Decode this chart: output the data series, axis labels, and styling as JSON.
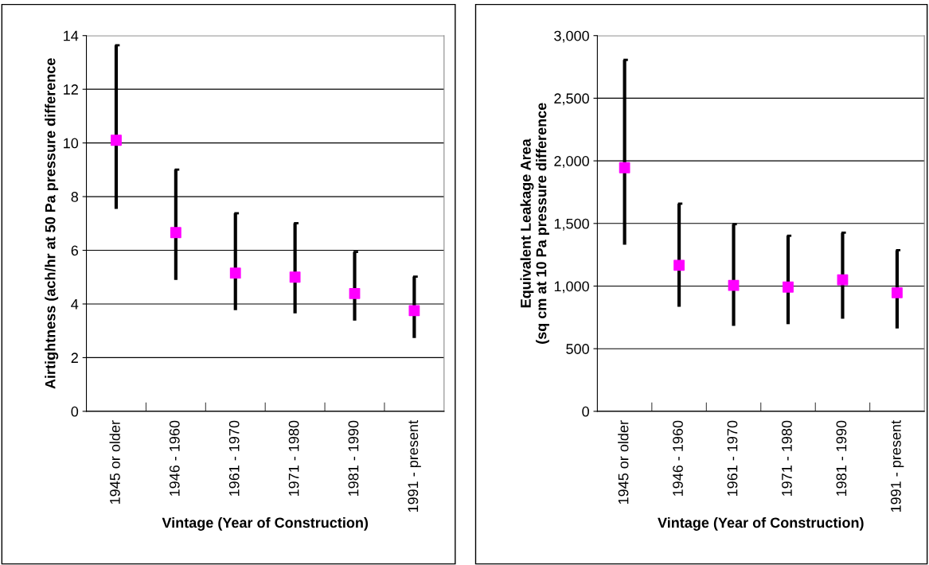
{
  "chart_data": [
    {
      "type": "scatter",
      "xlabel": "Vintage (Year of Construction)",
      "ylabel": "Airtightness (ach/hr at 50 Pa pressure difference",
      "categories": [
        "1945 or older",
        "1946 - 1960",
        "1961 - 1970",
        "1971 - 1980",
        "1981 - 1990",
        "1991 - present"
      ],
      "series": [
        {
          "color": "#ff00ff",
          "values": [
            10.1,
            6.66,
            5.15,
            5.0,
            4.39,
            3.75
          ],
          "errors": [
            [
              7.54,
              13.64
            ],
            [
              4.9,
              9.01
            ],
            [
              3.77,
              7.38
            ],
            [
              3.65,
              7.01
            ],
            [
              3.38,
              5.94
            ],
            [
              2.73,
              5.02
            ]
          ]
        }
      ],
      "ylim": [
        0,
        14
      ],
      "yticks": [
        0,
        2,
        4,
        6,
        8,
        10,
        12,
        14
      ],
      "grid": "y",
      "marker": "square"
    },
    {
      "type": "scatter",
      "xlabel": "Vintage (Year of Construction)",
      "ylabel": "Equivalent Leakage Area\n(sq cm at 10 Pa pressure difference",
      "categories": [
        "1945 or older",
        "1946 - 1960",
        "1961 - 1970",
        "1971 - 1980",
        "1981 - 1990",
        "1991 - present"
      ],
      "series": [
        {
          "color": "#ff00ff",
          "values": [
            1945,
            1166,
            1005,
            992,
            1050,
            947
          ],
          "errors": [
            [
              1331,
              2806
            ],
            [
              835,
              1658
            ],
            [
              683,
              1494
            ],
            [
              696,
              1402
            ],
            [
              739,
              1426
            ],
            [
              661,
              1286
            ]
          ]
        }
      ],
      "ylim": [
        0,
        3000
      ],
      "yticks": [
        0,
        500,
        {
          "value": 1000,
          "label": "1,000"
        },
        {
          "value": 1500,
          "label": "1,500"
        },
        {
          "value": 2000,
          "label": "2,000"
        },
        {
          "value": 2500,
          "label": "2,500"
        },
        {
          "value": 3000,
          "label": "3,000"
        }
      ],
      "grid": "y",
      "marker": "square"
    }
  ]
}
